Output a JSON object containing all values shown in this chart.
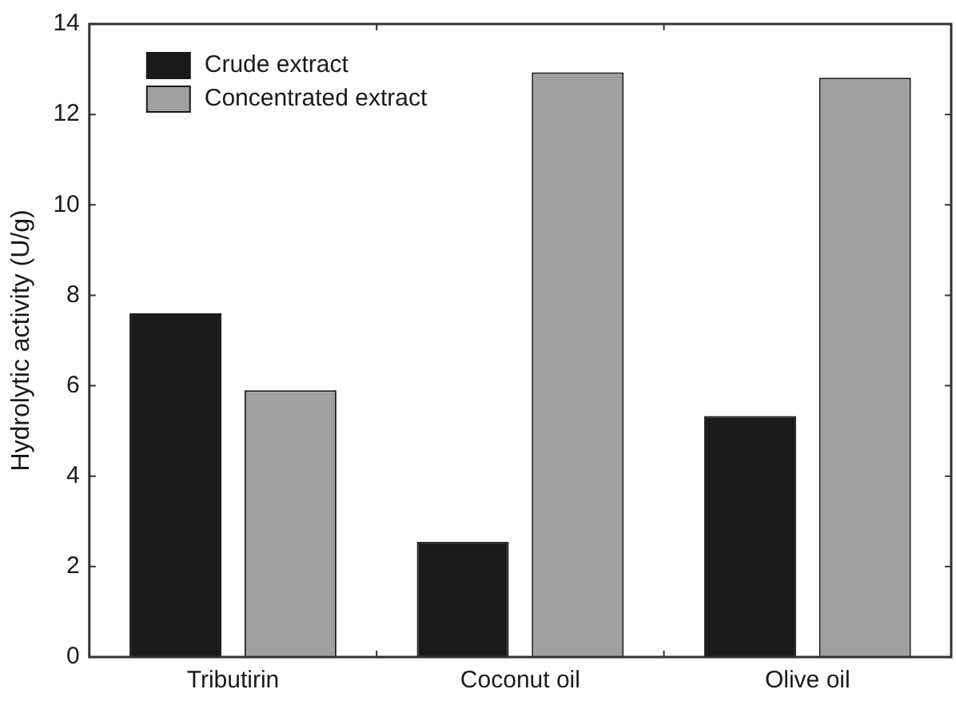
{
  "chart_data": {
    "type": "bar",
    "ylabel": "Hydrolytic activity (U/g)",
    "categories": [
      "Tributirin",
      "Coconut oil",
      "Olive oil"
    ],
    "series": [
      {
        "name": "Crude extract",
        "color": "#1a1a1a",
        "values": [
          7.6,
          2.55,
          5.33
        ]
      },
      {
        "name": "Concentrated extract",
        "color": "#a0a0a0",
        "values": [
          5.9,
          12.93,
          12.81
        ]
      }
    ],
    "ylim": [
      0,
      14
    ],
    "yticks": [
      0,
      2,
      4,
      6,
      8,
      10,
      12,
      14
    ],
    "legend": "top left"
  }
}
